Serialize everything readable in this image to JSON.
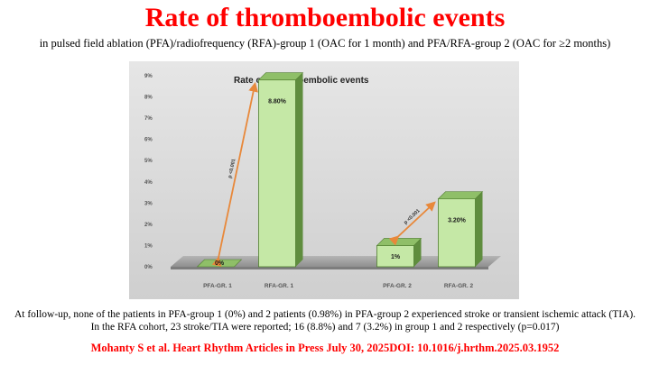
{
  "slide": {
    "title": "Rate of thromboembolic events",
    "subtitle": "in pulsed field ablation (PFA)/radiofrequency (RFA)-group 1 (OAC for 1 month) and PFA/RFA-group 2 (OAC for ≥2 months)",
    "body": "At follow-up, none of the patients in PFA-group 1 (0%) and 2 patients (0.98%) in PFA-group 2 experienced stroke or transient ischemic attack (TIA). In the RFA cohort, 23 stroke/TIA were reported; 16 (8.8%) and 7 (3.2%) in group 1 and 2 respectively (p=0.017)",
    "citation": "Mohanty S et al. Heart Rhythm Articles in Press July 30, 2025DOI: 10.1016/j.hrthm.2025.03.1952"
  },
  "chart_data": {
    "type": "bar",
    "title": "Rate of thromboembolic events",
    "categories": [
      "PFA-GR. 1",
      "RFA-GR. 1",
      "PFA-GR. 2",
      "RFA-GR. 2"
    ],
    "values": [
      0,
      8.8,
      1,
      3.2
    ],
    "data_labels": [
      "0%",
      "8.80%",
      "1%",
      "3.20%"
    ],
    "ylim": [
      0,
      9
    ],
    "yticks": [
      "0%",
      "1%",
      "2%",
      "3%",
      "4%",
      "5%",
      "6%",
      "7%",
      "8%",
      "9%"
    ],
    "comparisons": [
      {
        "from": 0,
        "to": 1,
        "label": "p <0.001"
      },
      {
        "from": 2,
        "to": 3,
        "label": "p <0.001"
      }
    ],
    "colors": {
      "bar_face": "#c5e8a6",
      "bar_side": "#5f8d3e",
      "bar_top": "#8fbf68",
      "bar_stroke": "#4f7d2f",
      "arrow": "#e8883a",
      "background": "#d9d9d9",
      "floor": "#9a9a9a"
    },
    "grid": false,
    "legend": "none"
  }
}
